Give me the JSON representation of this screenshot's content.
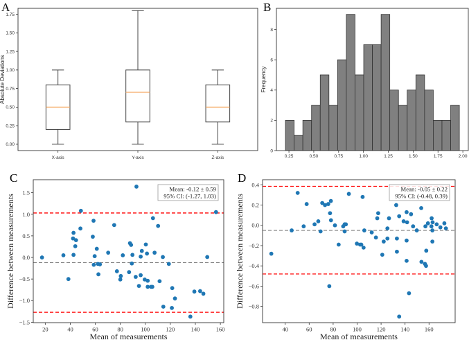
{
  "colors": {
    "box": "#444444",
    "median": "#f5a964",
    "bar": "#808080",
    "bar_edge": "#333333",
    "point": "#1f77b4",
    "limit": "#ff0000",
    "mean": "#808080"
  },
  "chart_data": [
    {
      "panel": "A",
      "type": "box",
      "ylabel": "Absolute Deviations",
      "xlabel": "",
      "categories": [
        "X-axis",
        "Y-axis",
        "Z-axis"
      ],
      "boxes": [
        {
          "whislo": 0.0,
          "q1": 0.2,
          "med": 0.5,
          "q3": 0.8,
          "whishi": 1.0
        },
        {
          "whislo": 0.0,
          "q1": 0.3,
          "med": 0.7,
          "q3": 1.0,
          "whishi": 1.8
        },
        {
          "whislo": 0.0,
          "q1": 0.3,
          "med": 0.5,
          "q3": 0.8,
          "whishi": 1.0
        }
      ],
      "ylim": [
        -0.085,
        1.83
      ],
      "yticks": [
        0,
        0.25,
        0.5,
        0.75,
        1.0,
        1.25,
        1.5,
        1.75
      ],
      "ytick_labels": [
        "0.00",
        "0.25",
        "0.50",
        "0.75",
        "1.00",
        "1.25",
        "1.50",
        "1.75"
      ],
      "grid": false
    },
    {
      "panel": "B",
      "type": "bar",
      "title": "",
      "ylabel": "Frequency",
      "xlabel": "",
      "bin_start": 0.215,
      "bin_width": 0.0875,
      "values": [
        2,
        1,
        2,
        3,
        5,
        3,
        6,
        9,
        5,
        7,
        7,
        9,
        4,
        3,
        4,
        5,
        4,
        2,
        2,
        3
      ],
      "xlim": [
        0.124,
        2.055
      ],
      "ylim": [
        0,
        9.4
      ],
      "xticks": [
        0.25,
        0.5,
        0.75,
        1.0,
        1.25,
        1.5,
        1.75,
        2.0
      ],
      "xtick_labels": [
        "0.25",
        "0.50",
        "0.75",
        "1.00",
        "1.25",
        "1.50",
        "1.75",
        "2.00"
      ],
      "yticks": [
        0,
        2,
        4,
        6,
        8
      ],
      "ytick_labels": [
        "0",
        "2",
        "4",
        "6",
        "8"
      ],
      "grid": false
    },
    {
      "panel": "C",
      "type": "scatter",
      "xlabel": "Mean of measurements",
      "ylabel": "Difference between measurements",
      "legend": [
        "Mean: -0.12 ± 0.59",
        "95% CI: (-1.27, 1.03)"
      ],
      "legend_placement": "top-right",
      "mean_line": -0.12,
      "limits": [
        -1.27,
        1.03
      ],
      "xlim": [
        10.4,
        162.7
      ],
      "ylim": [
        -1.51,
        1.8
      ],
      "xticks": [
        20,
        40,
        60,
        80,
        100,
        120,
        140,
        160
      ],
      "xtick_labels": [
        "20",
        "40",
        "60",
        "80",
        "100",
        "120",
        "140",
        "160"
      ],
      "yticks": [
        -1.5,
        -1.0,
        -0.5,
        0.0,
        0.5,
        1.0,
        1.5
      ],
      "ytick_labels": [
        "−1.5",
        "−1.0",
        "−0.5",
        "0.0",
        "0.5",
        "1.0",
        "1.5"
      ],
      "points": [
        [
          17.4,
          0.0
        ],
        [
          34.5,
          0.05
        ],
        [
          38.5,
          -0.5
        ],
        [
          42.6,
          0.57
        ],
        [
          42.2,
          0.44
        ],
        [
          44.6,
          0.4
        ],
        [
          44.0,
          0.26
        ],
        [
          42.6,
          0.06
        ],
        [
          48.5,
          1.08
        ],
        [
          48.1,
          0.67
        ],
        [
          58.6,
          0.85
        ],
        [
          58.0,
          0.48
        ],
        [
          58.8,
          -0.17
        ],
        [
          59.5,
          0.03
        ],
        [
          61.2,
          0.2
        ],
        [
          62.1,
          -0.15
        ],
        [
          63.7,
          -0.16
        ],
        [
          62.5,
          -0.39
        ],
        [
          70.3,
          0.11
        ],
        [
          75.1,
          0.75
        ],
        [
          77.3,
          -0.32
        ],
        [
          80.4,
          -0.43
        ],
        [
          80.0,
          -0.51
        ],
        [
          82.0,
          0.05
        ],
        [
          87.0,
          -0.34
        ],
        [
          87.7,
          0.33
        ],
        [
          88.6,
          0.29
        ],
        [
          89.2,
          -0.14
        ],
        [
          89.7,
          0.06
        ],
        [
          92.9,
          1.64
        ],
        [
          92.3,
          -0.45
        ],
        [
          94.9,
          -0.66
        ],
        [
          96.3,
          -0.41
        ],
        [
          96.3,
          0.02
        ],
        [
          97.2,
          0.15
        ],
        [
          99.5,
          -0.51
        ],
        [
          100.4,
          0.3
        ],
        [
          101.3,
          0.09
        ],
        [
          101.9,
          -0.54
        ],
        [
          101.9,
          -0.68
        ],
        [
          104.6,
          -0.68
        ],
        [
          105.6,
          -0.68
        ],
        [
          106.1,
          0.91
        ],
        [
          107.4,
          0.11
        ],
        [
          110.2,
          0.73
        ],
        [
          111.4,
          -0.55
        ],
        [
          114.0,
          0.01
        ],
        [
          114.4,
          -1.14
        ],
        [
          118.8,
          -0.15
        ],
        [
          121.2,
          -1.17
        ],
        [
          121.5,
          -0.71
        ],
        [
          123.7,
          -0.95
        ],
        [
          136.0,
          -1.37
        ],
        [
          139.2,
          -0.79
        ],
        [
          143.8,
          -0.78
        ],
        [
          146.4,
          -0.84
        ],
        [
          149.5,
          0.01
        ],
        [
          156.5,
          1.05
        ]
      ]
    },
    {
      "panel": "D",
      "type": "scatter",
      "xlabel": "Mean of measurements",
      "ylabel": "Difference between measurements",
      "legend": [
        "Mean: -0.05 ± 0.22",
        "95% CI: (-0.48, 0.39)"
      ],
      "legend_placement": "top-right",
      "mean_line": -0.05,
      "limits": [
        -0.48,
        0.385
      ],
      "xlim": [
        21.1,
        181.8
      ],
      "ylim": [
        -0.96,
        0.45
      ],
      "xticks": [
        40,
        60,
        80,
        100,
        120,
        140,
        160
      ],
      "xtick_labels": [
        "40",
        "60",
        "80",
        "100",
        "120",
        "140",
        "160"
      ],
      "yticks": [
        -0.8,
        -0.6,
        -0.4,
        -0.2,
        0.0,
        0.2,
        0.4
      ],
      "ytick_labels": [
        "−0.8",
        "−0.6",
        "−0.4",
        "−0.2",
        "0.0",
        "0.2",
        "0.4"
      ],
      "points": [
        [
          28.4,
          -0.28
        ],
        [
          45.4,
          -0.05
        ],
        [
          50.4,
          0.32
        ],
        [
          55.4,
          -0.01
        ],
        [
          57.9,
          0.21
        ],
        [
          64.5,
          0.01
        ],
        [
          67.6,
          0.04
        ],
        [
          69.5,
          -0.06
        ],
        [
          70.9,
          0.22
        ],
        [
          73.2,
          0.2
        ],
        [
          75.9,
          0.21
        ],
        [
          78.1,
          0.24
        ],
        [
          77.4,
          0.12
        ],
        [
          78.2,
          0.05
        ],
        [
          76.8,
          -0.6
        ],
        [
          81.5,
          0.0
        ],
        [
          84.6,
          -0.19
        ],
        [
          88.4,
          -0.01
        ],
        [
          89.6,
          0.01
        ],
        [
          90.6,
          0.01
        ],
        [
          89.6,
          -0.06
        ],
        [
          93.1,
          0.31
        ],
        [
          99.8,
          -0.18
        ],
        [
          102.5,
          -0.19
        ],
        [
          103.5,
          -0.19
        ],
        [
          104.6,
          0.28
        ],
        [
          105.4,
          -0.22
        ],
        [
          106.0,
          -0.05
        ],
        [
          112.2,
          -0.07
        ],
        [
          115.7,
          -0.12
        ],
        [
          116.8,
          0.07
        ],
        [
          117.6,
          0.12
        ],
        [
          121.0,
          -0.29
        ],
        [
          122.2,
          -0.16
        ],
        [
          125.3,
          -0.03
        ],
        [
          125.3,
          -0.13
        ],
        [
          126.6,
          0.07
        ],
        [
          132.6,
          0.2
        ],
        [
          133.2,
          -0.13
        ],
        [
          133.2,
          -0.26
        ],
        [
          135.1,
          0.09
        ],
        [
          135.1,
          -0.9
        ],
        [
          138.8,
          0.04
        ],
        [
          141.3,
          0.13
        ],
        [
          141.7,
          0.03
        ],
        [
          141.3,
          -0.15
        ],
        [
          141.3,
          -0.35
        ],
        [
          143.3,
          -0.67
        ],
        [
          145.0,
          0.11
        ],
        [
          146.7,
          -0.01
        ],
        [
          149.8,
          -0.05
        ],
        [
          153.5,
          0.17
        ],
        [
          153.7,
          -0.36
        ],
        [
          157.0,
          -0.01
        ],
        [
          156.6,
          -0.38
        ],
        [
          157.5,
          -0.4
        ],
        [
          157.7,
          -0.25
        ],
        [
          159.1,
          0.02
        ],
        [
          162.0,
          -0.01
        ],
        [
          162.2,
          0.07
        ],
        [
          163.0,
          0.03
        ],
        [
          162.8,
          -0.05
        ],
        [
          162.8,
          -0.16
        ],
        [
          166.4,
          0.01
        ],
        [
          169.5,
          -0.02
        ],
        [
          172.8,
          0.02
        ],
        [
          174.1,
          -0.03
        ]
      ]
    }
  ]
}
